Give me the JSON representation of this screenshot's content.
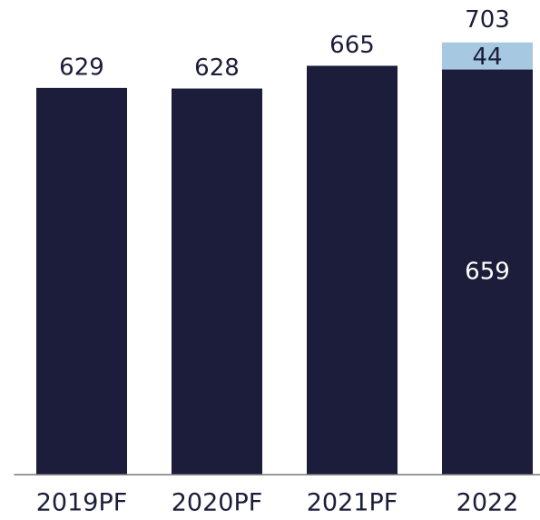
{
  "chart_data": {
    "type": "stacked_bar",
    "categories": [
      "2019PF",
      "2020PF",
      "2021PF",
      "2022"
    ],
    "series": [
      {
        "color": "#1b1d3a",
        "values": [
          629,
          628,
          665,
          659
        ]
      },
      {
        "color": "#a6c8e0",
        "values": [
          null,
          null,
          null,
          44
        ]
      }
    ],
    "totals": [
      null,
      null,
      null,
      703
    ],
    "ylim": [
      0,
      772
    ]
  }
}
